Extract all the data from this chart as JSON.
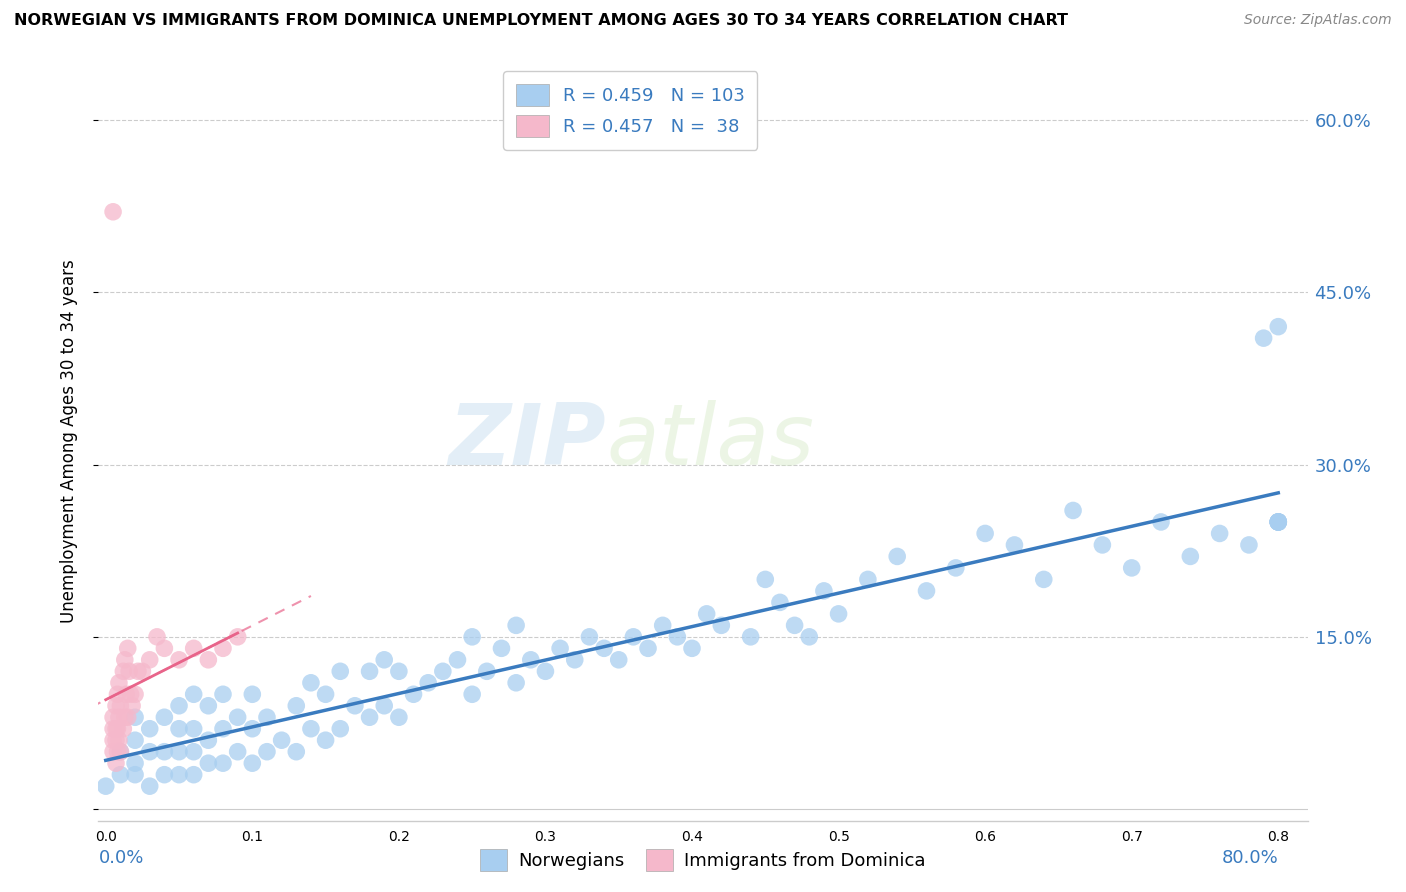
{
  "title": "NORWEGIAN VS IMMIGRANTS FROM DOMINICA UNEMPLOYMENT AMONG AGES 30 TO 34 YEARS CORRELATION CHART",
  "source": "Source: ZipAtlas.com",
  "ylabel": "Unemployment Among Ages 30 to 34 years",
  "legend_label_blue": "Norwegians",
  "legend_label_pink": "Immigrants from Dominica",
  "watermark_zip": "ZIP",
  "watermark_atlas": "atlas",
  "blue_R": 0.459,
  "blue_N": 103,
  "pink_R": 0.457,
  "pink_N": 38,
  "blue_color": "#a8cef0",
  "blue_line_color": "#3a7bbf",
  "pink_color": "#f5b8cb",
  "pink_line_color": "#e8648a",
  "blue_scatter_x": [
    0.0,
    0.01,
    0.01,
    0.02,
    0.02,
    0.02,
    0.02,
    0.03,
    0.03,
    0.03,
    0.04,
    0.04,
    0.04,
    0.05,
    0.05,
    0.05,
    0.05,
    0.06,
    0.06,
    0.06,
    0.06,
    0.07,
    0.07,
    0.07,
    0.08,
    0.08,
    0.08,
    0.09,
    0.09,
    0.1,
    0.1,
    0.1,
    0.11,
    0.11,
    0.12,
    0.13,
    0.13,
    0.14,
    0.14,
    0.15,
    0.15,
    0.16,
    0.16,
    0.17,
    0.18,
    0.18,
    0.19,
    0.19,
    0.2,
    0.2,
    0.21,
    0.22,
    0.23,
    0.24,
    0.25,
    0.25,
    0.26,
    0.27,
    0.28,
    0.28,
    0.29,
    0.3,
    0.31,
    0.32,
    0.33,
    0.34,
    0.35,
    0.36,
    0.37,
    0.38,
    0.39,
    0.4,
    0.41,
    0.42,
    0.44,
    0.45,
    0.46,
    0.47,
    0.48,
    0.49,
    0.5,
    0.52,
    0.54,
    0.56,
    0.58,
    0.6,
    0.62,
    0.64,
    0.66,
    0.68,
    0.7,
    0.72,
    0.74,
    0.76,
    0.78,
    0.79,
    0.8,
    0.8,
    0.8,
    0.8,
    0.8,
    0.8,
    0.8
  ],
  "blue_scatter_y": [
    0.02,
    0.03,
    0.05,
    0.03,
    0.04,
    0.06,
    0.08,
    0.02,
    0.05,
    0.07,
    0.03,
    0.05,
    0.08,
    0.03,
    0.05,
    0.07,
    0.09,
    0.03,
    0.05,
    0.07,
    0.1,
    0.04,
    0.06,
    0.09,
    0.04,
    0.07,
    0.1,
    0.05,
    0.08,
    0.04,
    0.07,
    0.1,
    0.05,
    0.08,
    0.06,
    0.05,
    0.09,
    0.07,
    0.11,
    0.06,
    0.1,
    0.07,
    0.12,
    0.09,
    0.08,
    0.12,
    0.09,
    0.13,
    0.08,
    0.12,
    0.1,
    0.11,
    0.12,
    0.13,
    0.1,
    0.15,
    0.12,
    0.14,
    0.11,
    0.16,
    0.13,
    0.12,
    0.14,
    0.13,
    0.15,
    0.14,
    0.13,
    0.15,
    0.14,
    0.16,
    0.15,
    0.14,
    0.17,
    0.16,
    0.15,
    0.2,
    0.18,
    0.16,
    0.15,
    0.19,
    0.17,
    0.2,
    0.22,
    0.19,
    0.21,
    0.24,
    0.23,
    0.2,
    0.26,
    0.23,
    0.21,
    0.25,
    0.22,
    0.24,
    0.23,
    0.41,
    0.42,
    0.25,
    0.25,
    0.25,
    0.25,
    0.25,
    0.25
  ],
  "pink_scatter_x": [
    0.005,
    0.005,
    0.005,
    0.005,
    0.005,
    0.007,
    0.007,
    0.007,
    0.007,
    0.008,
    0.008,
    0.008,
    0.009,
    0.009,
    0.009,
    0.01,
    0.01,
    0.012,
    0.012,
    0.013,
    0.013,
    0.014,
    0.015,
    0.015,
    0.016,
    0.017,
    0.018,
    0.02,
    0.022,
    0.025,
    0.03,
    0.035,
    0.04,
    0.05,
    0.06,
    0.07,
    0.08,
    0.09
  ],
  "pink_scatter_y": [
    0.52,
    0.05,
    0.06,
    0.07,
    0.08,
    0.04,
    0.06,
    0.07,
    0.09,
    0.05,
    0.07,
    0.1,
    0.06,
    0.08,
    0.11,
    0.05,
    0.09,
    0.07,
    0.12,
    0.08,
    0.13,
    0.1,
    0.08,
    0.14,
    0.12,
    0.1,
    0.09,
    0.1,
    0.12,
    0.12,
    0.13,
    0.15,
    0.14,
    0.13,
    0.14,
    0.13,
    0.14,
    0.15
  ],
  "xlim": [
    -0.005,
    0.82
  ],
  "ylim": [
    -0.01,
    0.65
  ],
  "yticks": [
    0.0,
    0.15,
    0.3,
    0.45,
    0.6
  ],
  "ytick_labels": [
    "",
    "15.0%",
    "30.0%",
    "45.0%",
    "60.0%"
  ]
}
